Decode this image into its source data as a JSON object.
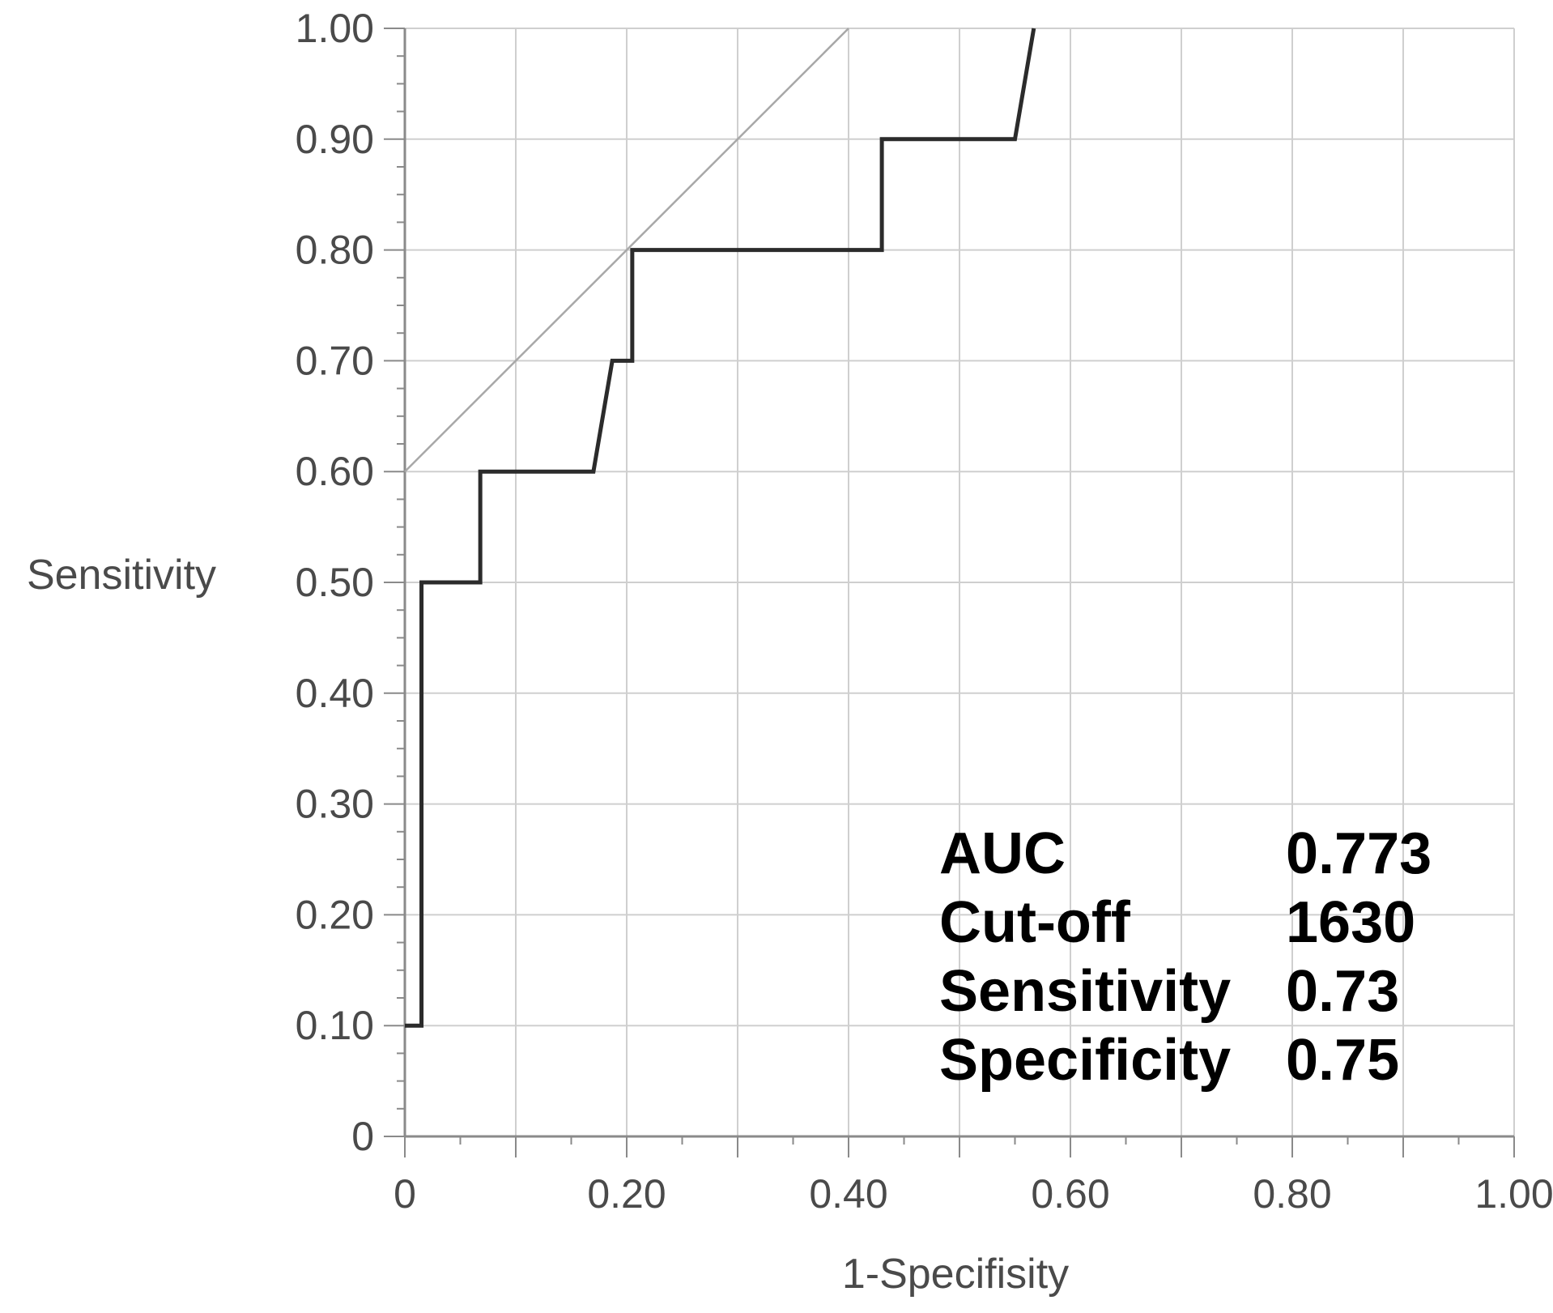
{
  "chart_data": {
    "type": "line",
    "title": "",
    "xlabel": "1-Specifisity",
    "ylabel": "Sensitivity",
    "xlim": [
      0,
      1
    ],
    "ylim": [
      0,
      1
    ],
    "grid": true,
    "x_tick_labels": [
      {
        "value": 0,
        "label": "0"
      },
      {
        "value": 0.2,
        "label": "0.20"
      },
      {
        "value": 0.4,
        "label": "0.40"
      },
      {
        "value": 0.6,
        "label": "0.60"
      },
      {
        "value": 0.8,
        "label": "0.80"
      },
      {
        "value": 1.0,
        "label": "1.00"
      }
    ],
    "y_tick_labels": [
      {
        "value": 0,
        "label": "0"
      },
      {
        "value": 0.1,
        "label": "0.10"
      },
      {
        "value": 0.2,
        "label": "0.20"
      },
      {
        "value": 0.3,
        "label": "0.30"
      },
      {
        "value": 0.4,
        "label": "0.40"
      },
      {
        "value": 0.5,
        "label": "0.50"
      },
      {
        "value": 0.6,
        "label": "0.60"
      },
      {
        "value": 0.7,
        "label": "0.70"
      },
      {
        "value": 0.8,
        "label": "0.80"
      },
      {
        "value": 0.9,
        "label": "0.90"
      },
      {
        "value": 1.0,
        "label": "1.00"
      }
    ],
    "x_gridlines": [
      0.1,
      0.2,
      0.3,
      0.4,
      0.5,
      0.6,
      0.7,
      0.8,
      0.9,
      1.0
    ],
    "y_gridlines": [
      0.1,
      0.2,
      0.3,
      0.4,
      0.5,
      0.6,
      0.7,
      0.8,
      0.9,
      1.0
    ],
    "series": [
      {
        "color": "#2b2b2b",
        "x": [
          0,
          0.015,
          0.015,
          0.068,
          0.068,
          0.17,
          0.187,
          0.205,
          0.205,
          0.43,
          0.43,
          0.55,
          0.567
        ],
        "y": [
          0.1,
          0.1,
          0.5,
          0.5,
          0.6,
          0.6,
          0.7,
          0.7,
          0.8,
          0.8,
          0.9,
          0.9,
          1.0
        ]
      }
    ],
    "reference_line": {
      "color": "#a8a8a8",
      "x": [
        0,
        0.4
      ],
      "y": [
        0.6,
        1.0
      ]
    }
  },
  "stats": {
    "rows": [
      {
        "label": "AUC",
        "value": "0.773"
      },
      {
        "label": "Cut-off",
        "value": "1630"
      },
      {
        "label": "Sensitivity",
        "value": "0.73"
      },
      {
        "label": "Specificity",
        "value": "0.75"
      }
    ]
  }
}
